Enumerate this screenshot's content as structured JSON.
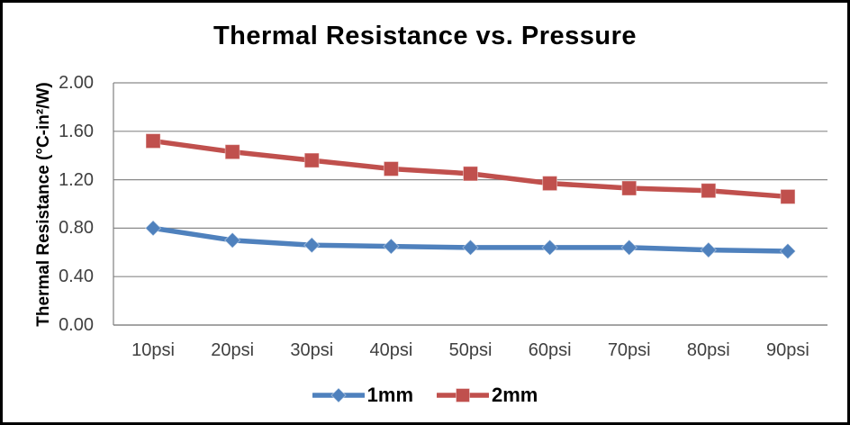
{
  "chart_data": {
    "type": "line",
    "title": "Thermal Resistance vs. Pressure",
    "ylabel": "Thermal Resistance (°C-in²/W)",
    "xlabel": "",
    "categories": [
      "10psi",
      "20psi",
      "30psi",
      "40psi",
      "50psi",
      "60psi",
      "70psi",
      "80psi",
      "90psi"
    ],
    "series": [
      {
        "name": "1mm",
        "marker": "diamond",
        "color": "#4F81BD",
        "values": [
          0.8,
          0.7,
          0.66,
          0.65,
          0.64,
          0.64,
          0.64,
          0.62,
          0.61
        ]
      },
      {
        "name": "2mm",
        "marker": "square",
        "color": "#C0504D",
        "values": [
          1.52,
          1.43,
          1.36,
          1.29,
          1.25,
          1.17,
          1.13,
          1.11,
          1.06
        ]
      }
    ],
    "ylim": [
      0.0,
      2.0
    ],
    "ytick_labels": [
      "0.00",
      "0.40",
      "0.80",
      "1.20",
      "1.60",
      "2.00"
    ],
    "grid": "horizontal",
    "legend_position": "bottom",
    "gridline_color": "#8a8a8a",
    "axis_line_color": "#808080",
    "axis_text_color": "#3f3f3f",
    "frame_border_color": "#000000",
    "background_color": "#ffffff"
  }
}
